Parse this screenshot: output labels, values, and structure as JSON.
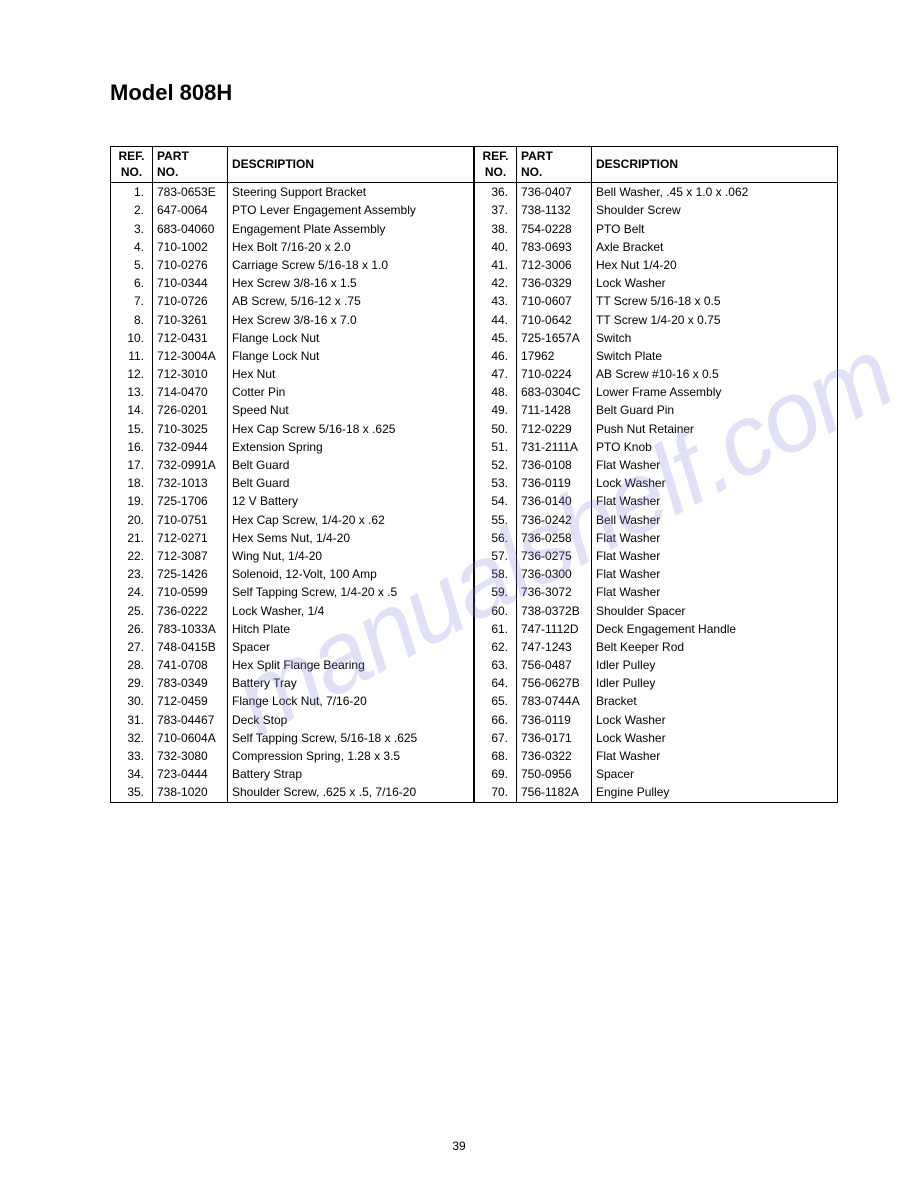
{
  "title": "Model 808H",
  "page_number": "39",
  "watermark": "manualshelf.com",
  "headers": {
    "ref_no": "REF.\nNO.",
    "part_no": "PART\nNO.",
    "description": "DESCRIPTION"
  },
  "table_left": {
    "rows": [
      {
        "ref": "1.",
        "part": "783-0653E",
        "desc": "Steering Support Bracket"
      },
      {
        "ref": "2.",
        "part": "647-0064",
        "desc": "PTO Lever Engagement Assembly"
      },
      {
        "ref": "3.",
        "part": "683-04060",
        "desc": "Engagement Plate Assembly"
      },
      {
        "ref": "4.",
        "part": "710-1002",
        "desc": "Hex Bolt 7/16-20 x 2.0"
      },
      {
        "ref": "5.",
        "part": "710-0276",
        "desc": "Carriage Screw 5/16-18 x 1.0"
      },
      {
        "ref": "6.",
        "part": "710-0344",
        "desc": "Hex Screw 3/8-16 x 1.5"
      },
      {
        "ref": "7.",
        "part": "710-0726",
        "desc": "AB Screw, 5/16-12 x .75"
      },
      {
        "ref": "8.",
        "part": "710-3261",
        "desc": "Hex Screw 3/8-16 x 7.0"
      },
      {
        "ref": "10.",
        "part": "712-0431",
        "desc": "Flange Lock Nut"
      },
      {
        "ref": "11.",
        "part": "712-3004A",
        "desc": "Flange Lock Nut"
      },
      {
        "ref": "12.",
        "part": "712-3010",
        "desc": "Hex Nut"
      },
      {
        "ref": "13.",
        "part": "714-0470",
        "desc": "Cotter Pin"
      },
      {
        "ref": "14.",
        "part": "726-0201",
        "desc": "Speed Nut"
      },
      {
        "ref": "15.",
        "part": "710-3025",
        "desc": "Hex Cap Screw 5/16-18 x .625"
      },
      {
        "ref": "16.",
        "part": "732-0944",
        "desc": "Extension Spring"
      },
      {
        "ref": "17.",
        "part": "732-0991A",
        "desc": "Belt Guard"
      },
      {
        "ref": "18.",
        "part": "732-1013",
        "desc": "Belt Guard"
      },
      {
        "ref": "19.",
        "part": "725-1706",
        "desc": "12 V Battery"
      },
      {
        "ref": "20.",
        "part": "710-0751",
        "desc": "Hex Cap Screw, 1/4-20 x .62"
      },
      {
        "ref": "21.",
        "part": "712-0271",
        "desc": "Hex Sems Nut, 1/4-20"
      },
      {
        "ref": "22.",
        "part": "712-3087",
        "desc": "Wing Nut, 1/4-20"
      },
      {
        "ref": "23.",
        "part": "725-1426",
        "desc": "Solenoid, 12-Volt, 100 Amp"
      },
      {
        "ref": "24.",
        "part": "710-0599",
        "desc": "Self Tapping Screw, 1/4-20 x .5"
      },
      {
        "ref": "25.",
        "part": "736-0222",
        "desc": "Lock Washer, 1/4"
      },
      {
        "ref": "26.",
        "part": "783-1033A",
        "desc": "Hitch Plate"
      },
      {
        "ref": "27.",
        "part": "748-0415B",
        "desc": "Spacer"
      },
      {
        "ref": "28.",
        "part": "741-0708",
        "desc": "Hex Split Flange Bearing"
      },
      {
        "ref": "29.",
        "part": "783-0349",
        "desc": "Battery Tray"
      },
      {
        "ref": "30.",
        "part": "712-0459",
        "desc": "Flange Lock Nut, 7/16-20"
      },
      {
        "ref": "31.",
        "part": "783-04467",
        "desc": "Deck Stop"
      },
      {
        "ref": "32.",
        "part": "710-0604A",
        "desc": "Self Tapping Screw, 5/16-18 x .625"
      },
      {
        "ref": "33.",
        "part": "732-3080",
        "desc": "Compression Spring, 1.28 x 3.5"
      },
      {
        "ref": "34.",
        "part": "723-0444",
        "desc": "Battery Strap"
      },
      {
        "ref": "35.",
        "part": "738-1020",
        "desc": "Shoulder Screw, .625 x .5, 7/16-20"
      }
    ]
  },
  "table_right": {
    "rows": [
      {
        "ref": "36.",
        "part": "736-0407",
        "desc": "Bell Washer, .45 x 1.0 x .062"
      },
      {
        "ref": "37.",
        "part": "738-1132",
        "desc": "Shoulder Screw"
      },
      {
        "ref": "38.",
        "part": "754-0228",
        "desc": "PTO Belt"
      },
      {
        "ref": "40.",
        "part": "783-0693",
        "desc": "Axle Bracket"
      },
      {
        "ref": "41.",
        "part": "712-3006",
        "desc": "Hex Nut 1/4-20"
      },
      {
        "ref": "42.",
        "part": "736-0329",
        "desc": "Lock Washer"
      },
      {
        "ref": "43.",
        "part": "710-0607",
        "desc": "TT Screw 5/16-18 x 0.5"
      },
      {
        "ref": "44.",
        "part": "710-0642",
        "desc": "TT Screw 1/4-20 x 0.75"
      },
      {
        "ref": "45.",
        "part": "725-1657A",
        "desc": "Switch"
      },
      {
        "ref": "46.",
        "part": "17962",
        "desc": "Switch Plate"
      },
      {
        "ref": "47.",
        "part": "710-0224",
        "desc": "AB Screw #10-16 x 0.5"
      },
      {
        "ref": "48.",
        "part": "683-0304C",
        "desc": "Lower Frame Assembly"
      },
      {
        "ref": "49.",
        "part": "711-1428",
        "desc": "Belt Guard Pin"
      },
      {
        "ref": "50.",
        "part": "712-0229",
        "desc": "Push Nut Retainer"
      },
      {
        "ref": "51.",
        "part": "731-2111A",
        "desc": "PTO Knob"
      },
      {
        "ref": "52.",
        "part": "736-0108",
        "desc": "Flat Washer"
      },
      {
        "ref": "53.",
        "part": "736-0119",
        "desc": "Lock Washer"
      },
      {
        "ref": "54.",
        "part": "736-0140",
        "desc": "Flat Washer"
      },
      {
        "ref": "55.",
        "part": "736-0242",
        "desc": "Bell Washer"
      },
      {
        "ref": "56.",
        "part": "736-0258",
        "desc": "Flat Washer"
      },
      {
        "ref": "57.",
        "part": "736-0275",
        "desc": "Flat Washer"
      },
      {
        "ref": "58.",
        "part": "736-0300",
        "desc": "Flat Washer"
      },
      {
        "ref": "59.",
        "part": "736-3072",
        "desc": "Flat Washer"
      },
      {
        "ref": "60.",
        "part": "738-0372B",
        "desc": "Shoulder Spacer"
      },
      {
        "ref": "61.",
        "part": "747-1112D",
        "desc": "Deck Engagement Handle"
      },
      {
        "ref": "62.",
        "part": "747-1243",
        "desc": "Belt Keeper Rod"
      },
      {
        "ref": "63.",
        "part": "756-0487",
        "desc": "Idler Pulley"
      },
      {
        "ref": "64.",
        "part": "756-0627B",
        "desc": "Idler Pulley"
      },
      {
        "ref": "65.",
        "part": "783-0744A",
        "desc": "Bracket"
      },
      {
        "ref": "66.",
        "part": "736-0119",
        "desc": "Lock Washer"
      },
      {
        "ref": "67.",
        "part": "736-0171",
        "desc": "Lock Washer"
      },
      {
        "ref": "68.",
        "part": "736-0322",
        "desc": "Flat Washer"
      },
      {
        "ref": "69.",
        "part": "750-0956",
        "desc": "Spacer"
      },
      {
        "ref": "70.",
        "part": "756-1182A",
        "desc": "Engine Pulley"
      }
    ]
  }
}
